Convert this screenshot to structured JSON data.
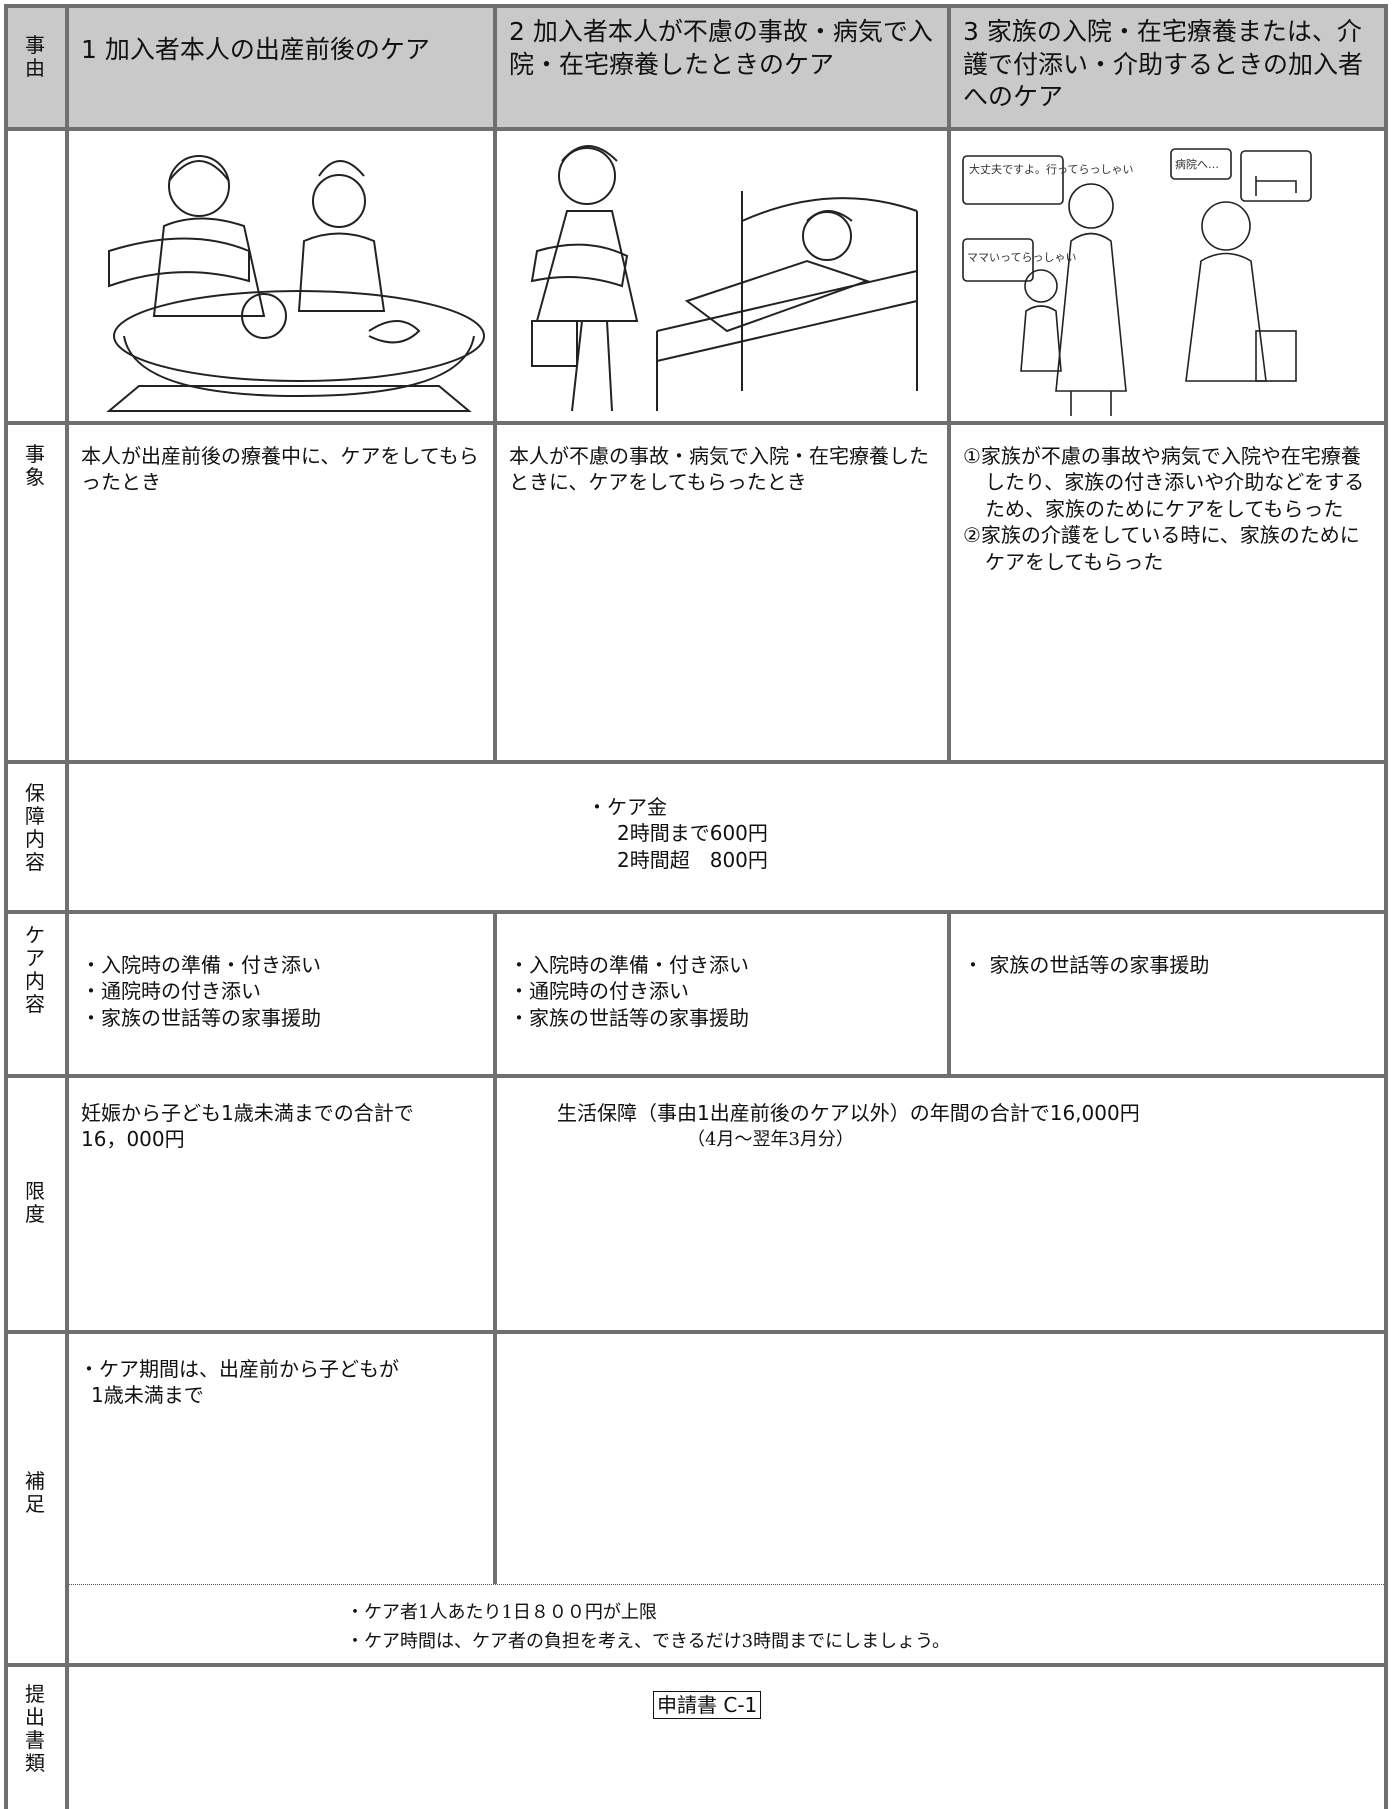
{
  "table": {
    "header": {
      "label": "事由",
      "columns": [
        "1 加入者本人の出産前後のケア",
        "2 加入者本人が不慮の事故・病気で入院・在宅療養したときのケア",
        "3 家族の入院・在宅療養または、介護で付添い・介助するときの加入者へのケア"
      ]
    },
    "illustrations": {
      "bubbles": [
        "大丈夫ですよ。行ってらっしゃい",
        "病院へ…",
        "ママいってらっしゃい"
      ]
    },
    "event": {
      "label": "事象",
      "cells": [
        "本人が出産前後の療養中に、ケアをしてもらったとき",
        "本人が不慮の事故・病気で入院・在宅療養したときに、ケアをしてもらったとき",
        [
          "①家族が不慮の事故や病気で入院や在宅療養したり、家族の付き添いや介助などをするため、家族のためにケアをしてもらった",
          "②家族の介護をしている時に、家族のためにケアをしてもらった"
        ]
      ]
    },
    "coverage": {
      "label": "保障内容",
      "lines": [
        "・ケア金",
        "2時間まで600円",
        "2時間超　800円"
      ]
    },
    "care": {
      "label": "ケア内容",
      "cells": [
        [
          "・入院時の準備・付き添い",
          "・通院時の付き添い",
          "・家族の世話等の家事援助"
        ],
        [
          "・入院時の準備・付き添い",
          "・通院時の付き添い",
          "・家族の世話等の家事援助"
        ],
        [
          "・ 家族の世話等の家事援助"
        ]
      ]
    },
    "limit": {
      "label": "限度",
      "cell1": "妊娠から子ども1歳未満までの合計で16，000円",
      "cell2": "生活保障（事由1出産前後のケア以外）の年間の合計で16,000円",
      "note": "（4月～翌年3月分）"
    },
    "supplement": {
      "label": "補足",
      "cell1": "・ケア期間は、出産前から子どもが1歳未満まで",
      "notes": [
        "・ケア者1人あたり1日８００円が上限",
        "・ケア時間は、ケア者の負担を考え、できるだけ3時間までにしましょう。"
      ]
    },
    "documents": {
      "label": "提出書類",
      "value": "申請書 C-1"
    }
  }
}
